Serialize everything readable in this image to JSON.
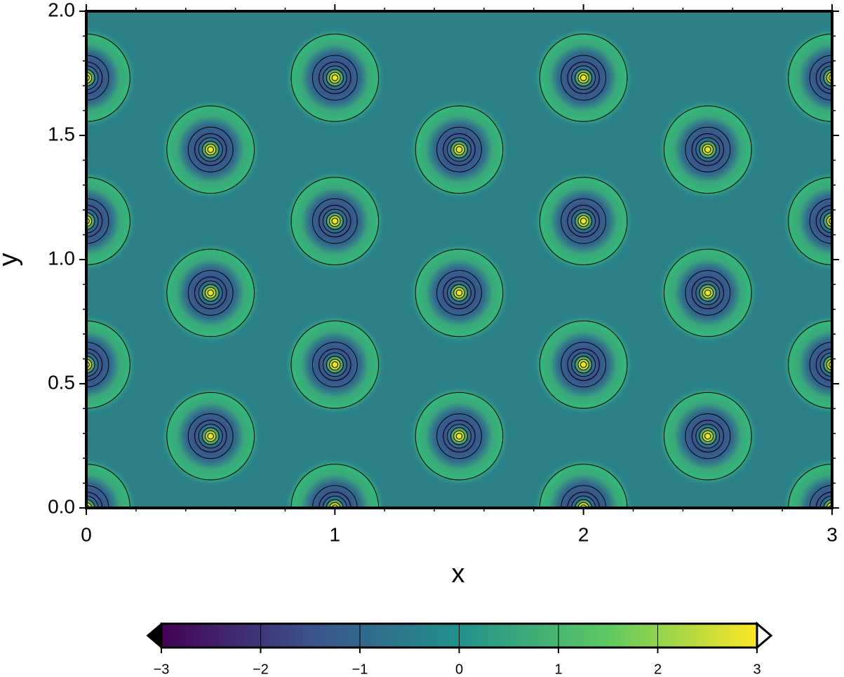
{
  "chart_data": {
    "type": "contour",
    "x_label": "x",
    "y_label": "y",
    "xlim": [
      0,
      3
    ],
    "ylim": [
      0,
      2
    ],
    "xticks": [
      0,
      1,
      2,
      3
    ],
    "xminor_ticks": [
      0.2,
      0.4,
      0.6,
      0.8,
      1.2,
      1.4,
      1.6,
      1.8,
      2.2,
      2.4,
      2.6,
      2.8
    ],
    "yticks": [
      {
        "value": 0,
        "label": "0.0"
      },
      {
        "value": 0.5,
        "label": "0.5"
      },
      {
        "value": 1,
        "label": "1.0"
      },
      {
        "value": 1.5,
        "label": "1.5"
      },
      {
        "value": 2,
        "label": "2.0"
      }
    ],
    "yminor_ticks": [
      0.1,
      0.2,
      0.3,
      0.4,
      0.6,
      0.7,
      0.8,
      0.9,
      1.1,
      1.2,
      1.3,
      1.4,
      1.6,
      1.7,
      1.8,
      1.9
    ],
    "peaks": {
      "x": [
        0,
        1,
        2,
        3,
        0.5,
        1.5,
        2.5,
        0,
        1,
        2,
        3,
        0.5,
        1.5,
        2.5,
        0,
        1,
        2,
        3,
        0.5,
        1.5,
        2.5,
        0,
        1,
        2,
        3
      ],
      "y": [
        0,
        0,
        0,
        0,
        0.289,
        0.289,
        0.289,
        0.577,
        0.577,
        0.577,
        0.577,
        0.866,
        0.866,
        0.866,
        1.155,
        1.155,
        1.155,
        1.155,
        1.443,
        1.443,
        1.443,
        1.732,
        1.732,
        1.732,
        1.732
      ],
      "values": [
        3,
        3,
        3,
        3,
        3,
        3,
        3,
        3,
        3,
        3,
        3,
        3,
        3,
        3,
        3,
        3,
        3,
        3,
        3,
        3,
        3,
        3,
        3,
        3,
        3
      ]
    },
    "colorbar": {
      "lim": [
        -3,
        3
      ],
      "ticks": [
        {
          "value": -3,
          "label": "−3"
        },
        {
          "value": -2,
          "label": "−2"
        },
        {
          "value": -1,
          "label": "−1"
        },
        0,
        1,
        2,
        3
      ],
      "colors": [
        "#440154",
        "#3b528b",
        "#21918c",
        "#5ec962",
        "#fde725"
      ]
    }
  }
}
